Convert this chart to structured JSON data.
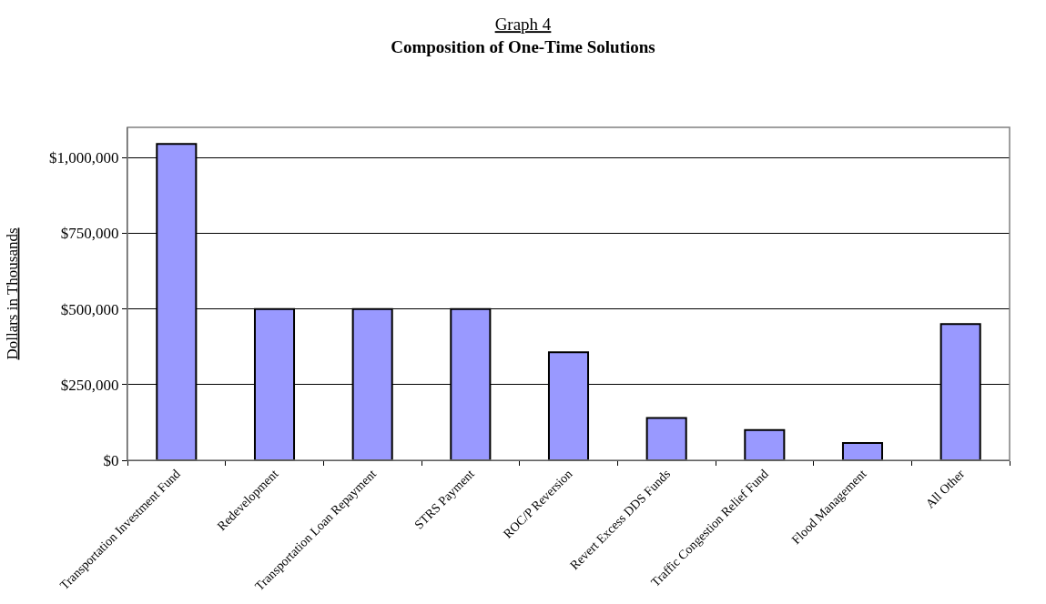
{
  "chart_data": {
    "type": "bar",
    "title": "Graph 4",
    "subtitle": "Composition of One-Time Solutions",
    "ylabel": "Dollars in Thousands",
    "categories": [
      "Transportation Investment Fund",
      "Redevelopment",
      "Transportation Loan Repayment",
      "STRS Payment",
      "ROC/P Reversion",
      "Revert Excess DDS Funds",
      "Traffic Congestion Relief Fund",
      "Flood Management",
      "All Other"
    ],
    "values": [
      1045000,
      500000,
      500000,
      500000,
      357000,
      140000,
      100000,
      57000,
      450000
    ],
    "color": "#9999ff",
    "ylim": [
      0,
      1100000
    ],
    "yticks": [
      {
        "value": 0,
        "label": "$0"
      },
      {
        "value": 250000,
        "label": "$250,000"
      },
      {
        "value": 500000,
        "label": "$500,000"
      },
      {
        "value": 750000,
        "label": "$750,000"
      },
      {
        "value": 1000000,
        "label": "$1,000,000"
      }
    ],
    "grid": "y"
  }
}
